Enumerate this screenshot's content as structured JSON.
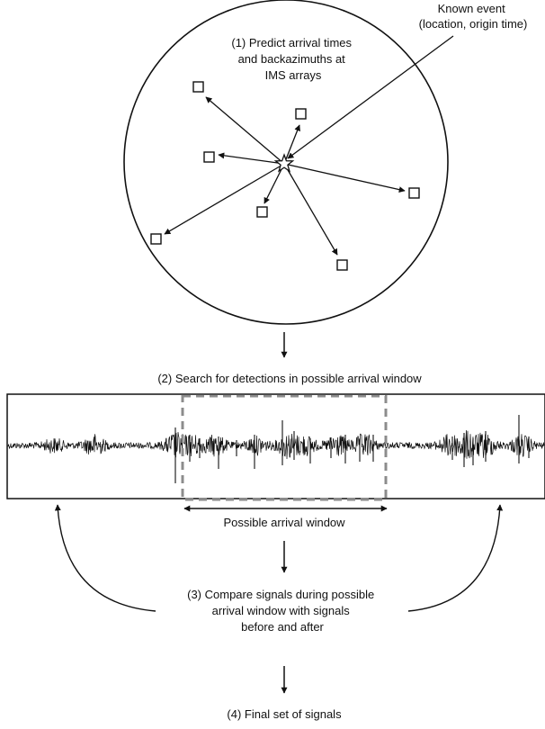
{
  "step1": {
    "lines": [
      "(1) Predict arrival times",
      "and backazimuths at",
      "IMS arrays"
    ]
  },
  "known_event": {
    "lines": [
      "Known event",
      "(location, origin time)"
    ]
  },
  "step2": {
    "label": "(2) Search for detections in possible arrival window"
  },
  "window": {
    "label": "Possible arrival window"
  },
  "step3": {
    "lines": [
      "(3) Compare signals during possible",
      "arrival window with signals",
      "before and after"
    ]
  },
  "step4": {
    "label": "(4) Final set of signals"
  },
  "colors": {
    "ink": "#111111",
    "window_dash": "#8c8c8c",
    "background": "#ffffff"
  },
  "icons": {
    "event": "star-icon",
    "station": "square-icon"
  }
}
